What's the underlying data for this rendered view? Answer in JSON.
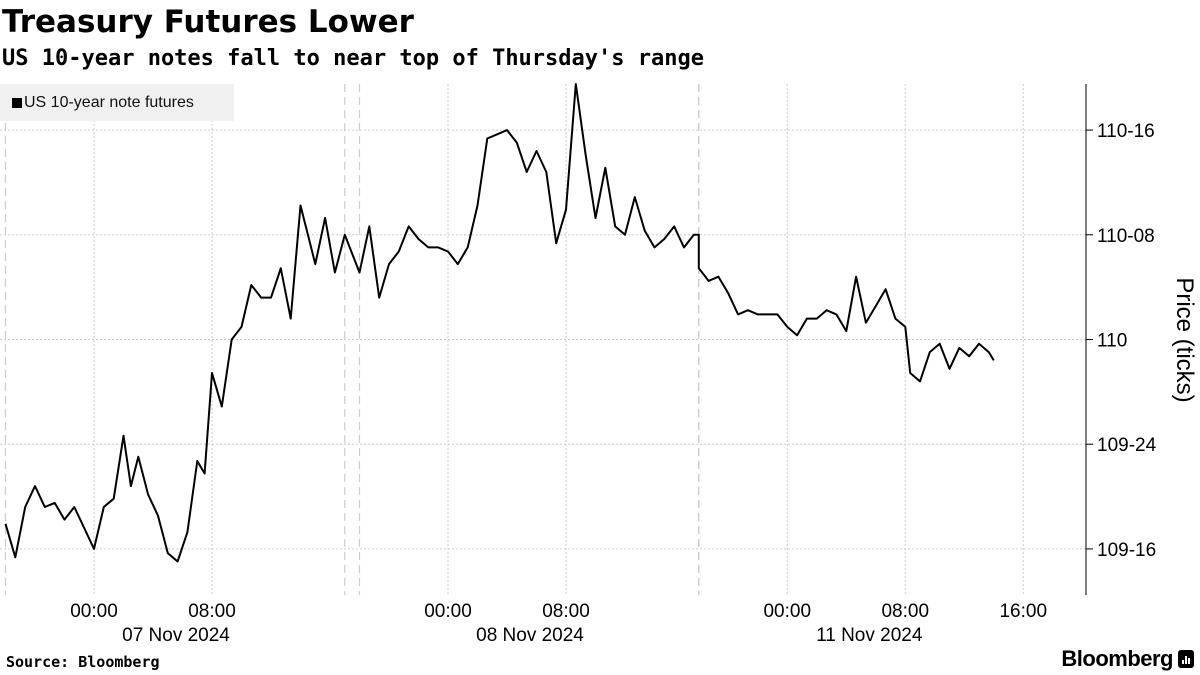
{
  "title": "Treasury Futures Lower",
  "subtitle": "US 10-year notes fall to near top of Thursday's range",
  "legend_label": "US 10-year note futures",
  "source": "Source: Bloomberg",
  "brand": "Bloomberg",
  "colors": {
    "line": "#000000",
    "grid": "#cccccc",
    "legend_bg": "#f0f0f0",
    "background": "#ffffff"
  },
  "chart_data": {
    "type": "line",
    "title": "Treasury Futures Lower",
    "subtitle": "US 10-year notes fall to near top of Thursday's range",
    "ylabel": "Price (ticks)",
    "y_unit": "32nds",
    "yticks": [
      {
        "value": 109.5,
        "label": "109-16"
      },
      {
        "value": 109.75,
        "label": "109-24"
      },
      {
        "value": 110.0,
        "label": "110"
      },
      {
        "value": 110.25,
        "label": "110-08"
      },
      {
        "value": 110.5,
        "label": "110-16"
      }
    ],
    "ylim": [
      109.39,
      110.61
    ],
    "xticks": [
      {
        "time": "2024-11-07 00:00",
        "label": "00:00",
        "sublabel": "07 Nov 2024"
      },
      {
        "time": "2024-11-07 08:00",
        "label": "08:00",
        "sublabel": ""
      },
      {
        "time": "2024-11-08 00:00",
        "label": "00:00",
        "sublabel": "08 Nov 2024"
      },
      {
        "time": "2024-11-08 08:00",
        "label": "08:00",
        "sublabel": ""
      },
      {
        "time": "2024-11-11 00:00",
        "label": "00:00",
        "sublabel": "11 Nov 2024"
      },
      {
        "time": "2024-11-11 08:00",
        "label": "08:00",
        "sublabel": ""
      },
      {
        "time": "2024-11-11 16:00",
        "label": "16:00",
        "sublabel": ""
      }
    ],
    "session_breaks": [
      "2024-11-06 18:00",
      "2024-11-07 17:00",
      "2024-11-07 18:00",
      "2024-11-08 17:00",
      "2024-11-10 18:00"
    ],
    "grid": true,
    "legend_position": "top-left",
    "series": [
      {
        "name": "US 10-year note futures",
        "x": [
          "2024-11-06 18:00",
          "2024-11-06 18:40",
          "2024-11-06 19:20",
          "2024-11-06 20:00",
          "2024-11-06 20:40",
          "2024-11-06 21:20",
          "2024-11-06 22:00",
          "2024-11-06 22:40",
          "2024-11-06 23:20",
          "2024-11-07 00:00",
          "2024-11-07 00:40",
          "2024-11-07 01:20",
          "2024-11-07 02:00",
          "2024-11-07 02:30",
          "2024-11-07 03:00",
          "2024-11-07 03:40",
          "2024-11-07 04:20",
          "2024-11-07 05:00",
          "2024-11-07 05:40",
          "2024-11-07 06:20",
          "2024-11-07 07:00",
          "2024-11-07 07:30",
          "2024-11-07 08:00",
          "2024-11-07 08:40",
          "2024-11-07 09:20",
          "2024-11-07 10:00",
          "2024-11-07 10:40",
          "2024-11-07 11:20",
          "2024-11-07 12:00",
          "2024-11-07 12:40",
          "2024-11-07 13:20",
          "2024-11-07 14:00",
          "2024-11-07 14:30",
          "2024-11-07 15:00",
          "2024-11-07 15:40",
          "2024-11-07 16:20",
          "2024-11-07 17:00",
          "2024-11-07 18:00",
          "2024-11-07 18:40",
          "2024-11-07 19:20",
          "2024-11-07 20:00",
          "2024-11-07 20:40",
          "2024-11-07 21:20",
          "2024-11-07 22:00",
          "2024-11-07 22:40",
          "2024-11-07 23:20",
          "2024-11-08 00:00",
          "2024-11-08 00:40",
          "2024-11-08 01:20",
          "2024-11-08 02:00",
          "2024-11-08 02:40",
          "2024-11-08 03:20",
          "2024-11-08 04:00",
          "2024-11-08 04:40",
          "2024-11-08 05:20",
          "2024-11-08 06:00",
          "2024-11-08 06:40",
          "2024-11-08 07:20",
          "2024-11-08 08:00",
          "2024-11-08 08:40",
          "2024-11-08 09:20",
          "2024-11-08 10:00",
          "2024-11-08 10:40",
          "2024-11-08 11:20",
          "2024-11-08 12:00",
          "2024-11-08 12:40",
          "2024-11-08 13:20",
          "2024-11-08 14:00",
          "2024-11-08 14:40",
          "2024-11-08 15:20",
          "2024-11-08 16:00",
          "2024-11-08 16:40",
          "2024-11-08 17:00",
          "2024-11-10 18:00",
          "2024-11-10 18:40",
          "2024-11-10 19:20",
          "2024-11-10 20:00",
          "2024-11-10 20:40",
          "2024-11-10 21:20",
          "2024-11-10 22:00",
          "2024-11-10 22:40",
          "2024-11-10 23:20",
          "2024-11-11 00:00",
          "2024-11-11 00:40",
          "2024-11-11 01:20",
          "2024-11-11 02:00",
          "2024-11-11 02:40",
          "2024-11-11 03:20",
          "2024-11-11 04:00",
          "2024-11-11 04:40",
          "2024-11-11 05:20",
          "2024-11-11 06:00",
          "2024-11-11 06:40",
          "2024-11-11 07:20",
          "2024-11-11 08:00",
          "2024-11-11 08:20",
          "2024-11-11 09:00",
          "2024-11-11 09:40",
          "2024-11-11 10:20",
          "2024-11-11 11:00",
          "2024-11-11 11:40",
          "2024-11-11 12:20",
          "2024-11-11 13:00",
          "2024-11-11 13:40",
          "2024-11-11 14:00"
        ],
        "y": [
          109.56,
          109.48,
          109.6,
          109.65,
          109.6,
          109.61,
          109.57,
          109.6,
          109.55,
          109.5,
          109.6,
          109.62,
          109.77,
          109.65,
          109.72,
          109.63,
          109.58,
          109.49,
          109.47,
          109.54,
          109.71,
          109.68,
          109.92,
          109.84,
          110.0,
          110.03,
          110.13,
          110.1,
          110.1,
          110.17,
          110.05,
          110.32,
          110.25,
          110.18,
          110.29,
          110.16,
          110.25,
          110.16,
          110.27,
          110.1,
          110.18,
          110.21,
          110.27,
          110.24,
          110.22,
          110.22,
          110.21,
          110.18,
          110.22,
          110.32,
          110.48,
          110.49,
          110.5,
          110.47,
          110.4,
          110.45,
          110.4,
          110.23,
          110.31,
          110.61,
          110.44,
          110.29,
          110.41,
          110.27,
          110.25,
          110.34,
          110.26,
          110.22,
          110.24,
          110.27,
          110.22,
          110.25,
          110.25,
          110.17,
          110.14,
          110.15,
          110.11,
          110.06,
          110.07,
          110.06,
          110.06,
          110.06,
          110.03,
          110.01,
          110.05,
          110.05,
          110.07,
          110.06,
          110.02,
          110.15,
          110.04,
          110.08,
          110.12,
          110.05,
          110.03,
          109.92,
          109.9,
          109.97,
          109.99,
          109.93,
          109.98,
          109.96,
          109.99,
          109.97,
          109.95
        ]
      }
    ]
  }
}
